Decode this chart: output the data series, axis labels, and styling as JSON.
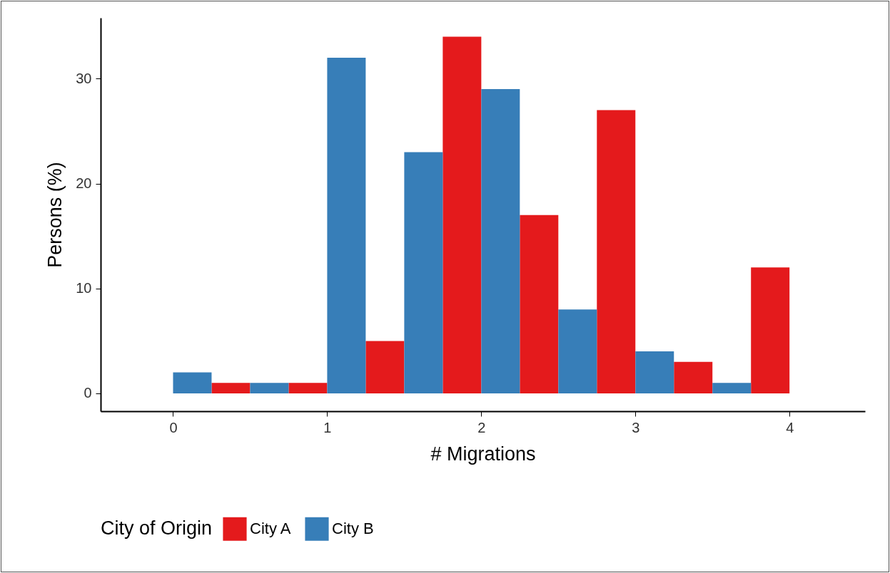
{
  "chart_data": {
    "type": "bar",
    "xlabel": "# Migrations",
    "ylabel": "Persons (%)",
    "legend_title": "City of Origin",
    "legend": "bottom",
    "x": [
      0,
      0.5,
      1,
      1.5,
      2,
      2.5,
      3,
      3.5,
      4
    ],
    "series": [
      {
        "name": "City A",
        "color": "#e41a1c",
        "values": [
          0,
          1,
          1,
          5,
          34,
          17,
          27,
          3,
          12
        ]
      },
      {
        "name": "City B",
        "color": "#377eb8",
        "values": [
          2,
          1,
          32,
          23,
          29,
          8,
          4,
          1,
          0
        ]
      }
    ],
    "xlim": [
      -0.47,
      4.49
    ],
    "xticks": [
      0,
      1,
      2,
      3,
      4
    ],
    "ylim": [
      -1.7,
      35.8
    ],
    "yticks": [
      0,
      10,
      20,
      30
    ]
  }
}
